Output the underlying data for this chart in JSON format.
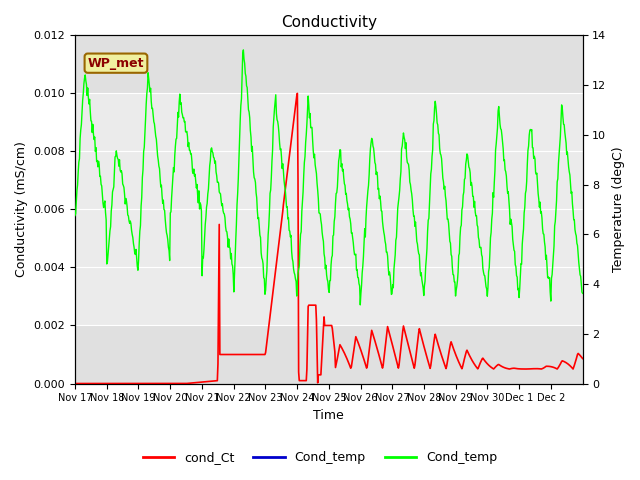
{
  "title": "Conductivity",
  "xlabel": "Time",
  "ylabel_left": "Conductivity (mS/cm)",
  "ylabel_right": "Temperature (degC)",
  "ylim_left": [
    0,
    0.012
  ],
  "ylim_right": [
    0,
    14
  ],
  "background_color": "#ffffff",
  "plot_bg_outer": "#e0e0e0",
  "plot_bg_inner": "#ebebeb",
  "legend_label_red": "cond_Ct",
  "legend_label_blue": "Cond_temp",
  "legend_label_green": "Cond_temp",
  "wp_met_label": "WP_met",
  "xtick_labels": [
    "Nov 17",
    "Nov 18",
    "Nov 19",
    "Nov 20",
    "Nov 21",
    "Nov 22",
    "Nov 23",
    "Nov 24",
    "Nov 25",
    "Nov 26",
    "Nov 27",
    "Nov 28",
    "Nov 29",
    "Nov 30",
    "Dec 1",
    "Dec 2"
  ],
  "ytick_left": [
    0.0,
    0.002,
    0.004,
    0.006,
    0.008,
    0.01,
    0.012
  ],
  "ytick_right": [
    0,
    2,
    4,
    6,
    8,
    10,
    12,
    14
  ],
  "red_color": "#ff0000",
  "green_color": "#00ff00",
  "blue_color": "#0000cc",
  "grid_color": "#ffffff",
  "hband_color": "#d4d4d4"
}
